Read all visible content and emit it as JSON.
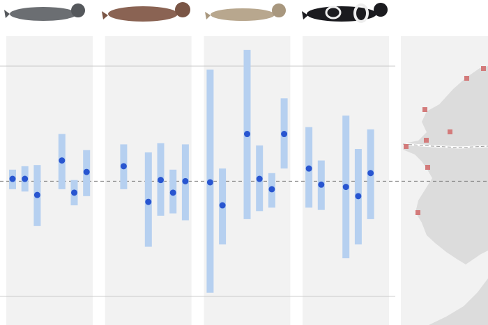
{
  "chart_data": {
    "type": "errorbar",
    "ylim": [
      -1.25,
      1.26
    ],
    "yticks": [
      -1,
      1
    ],
    "reference": 0,
    "grid": true,
    "bar_color": "#b6d0f0",
    "dot_color": "#2855d0",
    "panels": [
      {
        "values": [
          0.02,
          0.02,
          -0.12,
          null,
          0.18,
          -0.1,
          0.08
        ],
        "low": [
          -0.07,
          -0.09,
          -0.39,
          null,
          -0.07,
          -0.21,
          -0.13
        ],
        "high": [
          0.1,
          0.13,
          0.14,
          null,
          0.41,
          0.01,
          0.27
        ]
      },
      {
        "values": [
          null,
          0.13,
          null,
          -0.18,
          0.01,
          -0.1,
          0.0
        ],
        "low": [
          null,
          -0.07,
          null,
          -0.57,
          -0.3,
          -0.28,
          -0.34
        ],
        "high": [
          null,
          0.32,
          null,
          0.25,
          0.33,
          0.1,
          0.32
        ]
      },
      {
        "values": [
          -0.01,
          -0.21,
          null,
          0.41,
          0.02,
          -0.07,
          0.41
        ],
        "low": [
          -0.97,
          -0.55,
          null,
          -0.33,
          -0.26,
          -0.23,
          0.11
        ],
        "high": [
          0.97,
          0.11,
          null,
          1.14,
          0.31,
          0.07,
          0.72
        ]
      },
      {
        "values": [
          0.11,
          -0.03,
          null,
          -0.05,
          -0.13,
          0.07,
          null
        ],
        "low": [
          -0.23,
          -0.25,
          null,
          -0.67,
          -0.55,
          -0.33,
          null
        ],
        "high": [
          0.47,
          0.18,
          null,
          0.57,
          0.28,
          0.45,
          null
        ]
      }
    ]
  }
}
